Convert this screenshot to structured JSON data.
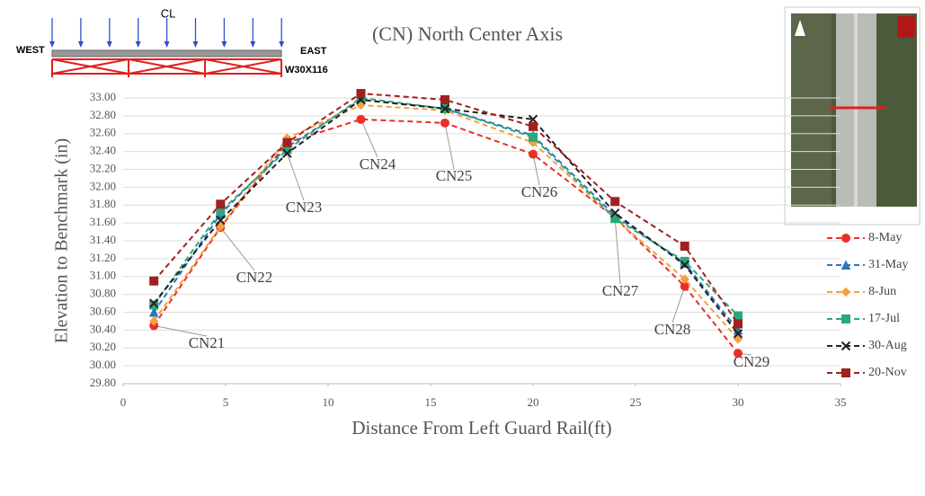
{
  "chart_data": {
    "type": "line",
    "title": "(CN) North Center Axis",
    "xlabel": "Distance From Left Guard Rail(ft)",
    "ylabel": "Elevation to Benchmark (in)",
    "x": [
      1.5,
      4.75,
      8,
      11.6,
      15.7,
      20,
      24,
      27.4,
      30
    ],
    "point_labels": [
      "CN21",
      "CN22",
      "CN23",
      "CN24",
      "CN25",
      "CN26",
      "CN27",
      "CN28",
      "CN29"
    ],
    "series": [
      {
        "name": "8-May",
        "color": "#e8302a",
        "marker": "circle",
        "values": [
          30.45,
          31.55,
          32.5,
          32.76,
          32.72,
          32.37,
          31.66,
          30.89,
          30.14
        ]
      },
      {
        "name": "31-May",
        "color": "#2e75b6",
        "marker": "triangle",
        "values": [
          30.6,
          31.7,
          32.45,
          32.98,
          32.88,
          32.58,
          31.68,
          31.15,
          30.4
        ]
      },
      {
        "name": "8-Jun",
        "color": "#f4a040",
        "marker": "diamond",
        "values": [
          30.5,
          31.56,
          32.55,
          32.92,
          32.86,
          32.5,
          31.65,
          30.97,
          30.3
        ]
      },
      {
        "name": "17-Jul",
        "color": "#2aa87a",
        "marker": "square",
        "values": [
          30.68,
          31.73,
          32.42,
          33.0,
          32.88,
          32.56,
          31.65,
          31.17,
          30.56
        ]
      },
      {
        "name": "30-Aug",
        "color": "#222222",
        "marker": "x",
        "values": [
          30.7,
          31.63,
          32.38,
          32.98,
          32.88,
          32.76,
          31.71,
          31.13,
          30.36
        ]
      },
      {
        "name": "20-Nov",
        "color": "#a02020",
        "marker": "square",
        "values": [
          30.95,
          31.81,
          32.5,
          33.05,
          32.98,
          32.68,
          31.84,
          31.34,
          30.47
        ]
      }
    ],
    "xlim": [
      0,
      35
    ],
    "xticks": [
      0,
      5,
      10,
      15,
      20,
      25,
      30,
      35
    ],
    "ylim": [
      29.8,
      33.0
    ],
    "yticks": [
      {
        "value": 29.8,
        "label": "29.80"
      },
      {
        "value": 30.0,
        "label": "30.00"
      },
      {
        "value": 30.2,
        "label": "30.20"
      },
      {
        "value": 30.4,
        "label": "30.40"
      },
      {
        "value": 30.6,
        "label": "30.60"
      },
      {
        "value": 30.8,
        "label": "30.80"
      },
      {
        "value": 31.0,
        "label": "31.00"
      },
      {
        "value": 31.2,
        "label": "31.20"
      },
      {
        "value": 31.4,
        "label": "31.40"
      },
      {
        "value": 31.6,
        "label": "31.60"
      },
      {
        "value": 31.8,
        "label": "31.80"
      },
      {
        "value": 32.0,
        "label": "32.00"
      },
      {
        "value": 32.2,
        "label": "32.20"
      },
      {
        "value": 32.4,
        "label": "32.40"
      },
      {
        "value": 32.6,
        "label": "32.60"
      },
      {
        "value": 32.8,
        "label": "32.80"
      },
      {
        "value": 33.0,
        "label": "33.00"
      }
    ],
    "grid": true,
    "legend": "right",
    "diagram": {
      "west": "WEST",
      "east": "EAST",
      "centerline": "CL",
      "section": "W30X116"
    }
  }
}
